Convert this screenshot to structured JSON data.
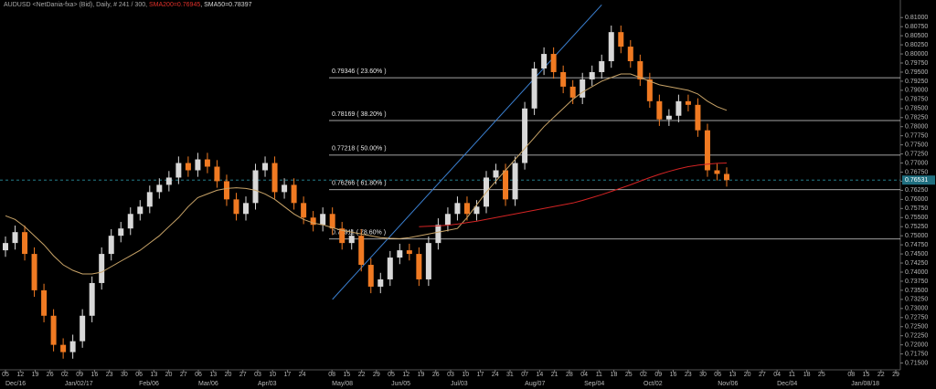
{
  "chart_data": {
    "type": "candlestick",
    "header": [
      {
        "text": "AUDUSD <NetDania-fxa> (Bid), Daily, # 241 / 300, ",
        "color": "#a8a8a8"
      },
      {
        "text": "SMA200=0.76945",
        "color": "#e0302a"
      },
      {
        "text": ", SMA50=0.78397",
        "color": "#d8d8d8"
      }
    ],
    "up_color": "#d8d8d8",
    "down_color": "#f07a22",
    "candles": [
      [
        0.746,
        0.7498,
        0.7442,
        0.748
      ],
      [
        0.748,
        0.7528,
        0.7462,
        0.751
      ],
      [
        0.751,
        0.7528,
        0.7432,
        0.745
      ],
      [
        0.745,
        0.7468,
        0.7332,
        0.735
      ],
      [
        0.735,
        0.7368,
        0.7262,
        0.728
      ],
      [
        0.728,
        0.7298,
        0.7182,
        0.72
      ],
      [
        0.72,
        0.7218,
        0.7162,
        0.718
      ],
      [
        0.718,
        0.7228,
        0.7162,
        0.721
      ],
      [
        0.721,
        0.7298,
        0.7192,
        0.728
      ],
      [
        0.728,
        0.7388,
        0.7262,
        0.737
      ],
      [
        0.737,
        0.7468,
        0.7352,
        0.745
      ],
      [
        0.745,
        0.7518,
        0.7432,
        0.75
      ],
      [
        0.75,
        0.7538,
        0.7482,
        0.752
      ],
      [
        0.752,
        0.7578,
        0.7502,
        0.756
      ],
      [
        0.756,
        0.7598,
        0.7542,
        0.758
      ],
      [
        0.758,
        0.7638,
        0.7562,
        0.762
      ],
      [
        0.762,
        0.7658,
        0.7602,
        0.764
      ],
      [
        0.764,
        0.7678,
        0.7622,
        0.766
      ],
      [
        0.766,
        0.7718,
        0.7642,
        0.77
      ],
      [
        0.77,
        0.7718,
        0.7662,
        0.768
      ],
      [
        0.768,
        0.7728,
        0.7662,
        0.771
      ],
      [
        0.771,
        0.7728,
        0.7672,
        0.769
      ],
      [
        0.769,
        0.7708,
        0.7632,
        0.765
      ],
      [
        0.765,
        0.7668,
        0.7582,
        0.76
      ],
      [
        0.76,
        0.7618,
        0.7542,
        0.756
      ],
      [
        0.756,
        0.7608,
        0.7542,
        0.759
      ],
      [
        0.759,
        0.7698,
        0.7572,
        0.768
      ],
      [
        0.768,
        0.7718,
        0.7662,
        0.77
      ],
      [
        0.77,
        0.7718,
        0.7602,
        0.762
      ],
      [
        0.762,
        0.7658,
        0.7602,
        0.764
      ],
      [
        0.764,
        0.7658,
        0.7572,
        0.759
      ],
      [
        0.759,
        0.7608,
        0.7532,
        0.755
      ],
      [
        0.755,
        0.7568,
        0.7512,
        0.753
      ],
      [
        0.753,
        0.7578,
        0.7512,
        0.756
      ],
      [
        0.756,
        0.7578,
        0.7502,
        0.752
      ],
      [
        0.752,
        0.7538,
        0.7462,
        0.748
      ],
      [
        0.748,
        0.7518,
        0.7462,
        0.75
      ],
      [
        0.75,
        0.7518,
        0.7402,
        0.742
      ],
      [
        0.742,
        0.7438,
        0.7342,
        0.736
      ],
      [
        0.736,
        0.7398,
        0.7342,
        0.738
      ],
      [
        0.738,
        0.7458,
        0.7362,
        0.744
      ],
      [
        0.744,
        0.7478,
        0.7422,
        0.746
      ],
      [
        0.746,
        0.7478,
        0.7432,
        0.745
      ],
      [
        0.745,
        0.7468,
        0.7362,
        0.738
      ],
      [
        0.738,
        0.7498,
        0.7362,
        0.748
      ],
      [
        0.748,
        0.7548,
        0.7462,
        0.753
      ],
      [
        0.753,
        0.7578,
        0.7512,
        0.756
      ],
      [
        0.756,
        0.7608,
        0.7542,
        0.759
      ],
      [
        0.759,
        0.7608,
        0.7542,
        0.756
      ],
      [
        0.756,
        0.7598,
        0.7542,
        0.758
      ],
      [
        0.758,
        0.7678,
        0.7562,
        0.766
      ],
      [
        0.766,
        0.7698,
        0.7642,
        0.768
      ],
      [
        0.768,
        0.7698,
        0.7582,
        0.76
      ],
      [
        0.76,
        0.7718,
        0.7582,
        0.77
      ],
      [
        0.77,
        0.7868,
        0.7682,
        0.785
      ],
      [
        0.785,
        0.7978,
        0.7832,
        0.796
      ],
      [
        0.796,
        0.8018,
        0.7942,
        0.8
      ],
      [
        0.8,
        0.8018,
        0.7932,
        0.795
      ],
      [
        0.795,
        0.7968,
        0.7892,
        0.791
      ],
      [
        0.791,
        0.7928,
        0.7862,
        0.788
      ],
      [
        0.788,
        0.7948,
        0.7862,
        0.793
      ],
      [
        0.793,
        0.7968,
        0.7912,
        0.795
      ],
      [
        0.795,
        0.7998,
        0.7932,
        0.798
      ],
      [
        0.798,
        0.8078,
        0.7962,
        0.806
      ],
      [
        0.806,
        0.8078,
        0.8002,
        0.802
      ],
      [
        0.802,
        0.8038,
        0.7962,
        0.798
      ],
      [
        0.798,
        0.7998,
        0.7912,
        0.793
      ],
      [
        0.793,
        0.7948,
        0.7852,
        0.787
      ],
      [
        0.787,
        0.7888,
        0.7802,
        0.782
      ],
      [
        0.782,
        0.7848,
        0.7802,
        0.783
      ],
      [
        0.783,
        0.7888,
        0.7812,
        0.787
      ],
      [
        0.787,
        0.7888,
        0.7842,
        0.786
      ],
      [
        0.786,
        0.7878,
        0.7772,
        0.779
      ],
      [
        0.779,
        0.7808,
        0.7662,
        0.768
      ],
      [
        0.768,
        0.7698,
        0.7652,
        0.767
      ],
      [
        0.767,
        0.7688,
        0.7635,
        0.7653
      ]
    ],
    "series": [
      {
        "name": "SMA50",
        "color": "#c9a468",
        "values": [
          0.7555,
          0.7545,
          0.7525,
          0.75,
          0.7475,
          0.7445,
          0.742,
          0.7405,
          0.7395,
          0.7395,
          0.74,
          0.7415,
          0.743,
          0.7445,
          0.746,
          0.748,
          0.75,
          0.7525,
          0.755,
          0.758,
          0.7605,
          0.7615,
          0.7625,
          0.763,
          0.7632,
          0.763,
          0.7625,
          0.7615,
          0.76,
          0.758,
          0.756,
          0.7545,
          0.7535,
          0.753,
          0.7522,
          0.7515,
          0.751,
          0.7505,
          0.75,
          0.7495,
          0.7493,
          0.7492,
          0.7495,
          0.75,
          0.7505,
          0.751,
          0.7515,
          0.752,
          0.755,
          0.7585,
          0.762,
          0.765,
          0.768,
          0.771,
          0.774,
          0.777,
          0.78,
          0.7825,
          0.785,
          0.7875,
          0.7895,
          0.791,
          0.7925,
          0.7935,
          0.7945,
          0.7945,
          0.7935,
          0.7925,
          0.7915,
          0.791,
          0.7905,
          0.79,
          0.789,
          0.787,
          0.7855,
          0.7845
        ]
      },
      {
        "name": "SMA200",
        "color": "#d42424",
        "values": [
          null,
          null,
          null,
          null,
          null,
          null,
          null,
          null,
          null,
          null,
          null,
          null,
          null,
          null,
          null,
          null,
          null,
          null,
          null,
          null,
          null,
          null,
          null,
          null,
          null,
          null,
          null,
          null,
          null,
          null,
          null,
          null,
          null,
          null,
          null,
          null,
          null,
          null,
          null,
          null,
          null,
          null,
          null,
          0.7525,
          0.7526,
          0.7527,
          0.7529,
          0.7532,
          0.7536,
          0.754,
          0.7545,
          0.755,
          0.7555,
          0.756,
          0.7565,
          0.757,
          0.7575,
          0.758,
          0.7585,
          0.759,
          0.7597,
          0.7605,
          0.7613,
          0.7622,
          0.7631,
          0.764,
          0.765,
          0.766,
          0.7669,
          0.7677,
          0.7684,
          0.769,
          0.7694,
          0.7697,
          0.7699,
          0.77
        ]
      }
    ],
    "trendline": {
      "color": "#3a7fd0",
      "start": {
        "candle": 34,
        "price": 0.7325
      },
      "end": {
        "candle": 62,
        "price": 0.8135
      }
    },
    "fib_levels": [
      {
        "value": 0.79346,
        "label": "0.79346 ( 23.60% )"
      },
      {
        "value": 0.78169,
        "label": "0.78169 ( 38.20% )"
      },
      {
        "value": 0.77218,
        "label": "0.77218 ( 50.00% )"
      },
      {
        "value": 0.76266,
        "label": "0.76266 ( 61.80% )"
      },
      {
        "value": 0.74911,
        "label": "0.74911 ( 78.60% )"
      }
    ],
    "last_price": 0.76531,
    "ylim": [
      0.71313,
      0.81483
    ],
    "yticks": [
      {
        "value": 0.715,
        "label": "0.71500"
      },
      {
        "value": 0.7175,
        "label": "0.71750"
      },
      {
        "value": 0.72,
        "label": "0.72000"
      },
      {
        "value": 0.7225,
        "label": "0.72250"
      },
      {
        "value": 0.725,
        "label": "0.72500"
      },
      {
        "value": 0.7275,
        "label": "0.72750"
      },
      {
        "value": 0.73,
        "label": "0.73000"
      },
      {
        "value": 0.7325,
        "label": "0.73250"
      },
      {
        "value": 0.735,
        "label": "0.73500"
      },
      {
        "value": 0.7375,
        "label": "0.73750"
      },
      {
        "value": 0.74,
        "label": "0.74000"
      },
      {
        "value": 0.7425,
        "label": "0.74250"
      },
      {
        "value": 0.745,
        "label": "0.74500"
      },
      {
        "value": 0.7475,
        "label": "0.74750"
      },
      {
        "value": 0.75,
        "label": "0.75000"
      },
      {
        "value": 0.7525,
        "label": "0.75250"
      },
      {
        "value": 0.755,
        "label": "0.75500"
      },
      {
        "value": 0.7575,
        "label": "0.75750"
      },
      {
        "value": 0.76,
        "label": "0.76000"
      },
      {
        "value": 0.7625,
        "label": "0.76250"
      },
      {
        "value": 0.765,
        "label": "0.76500"
      },
      {
        "value": 0.7675,
        "label": "0.76750"
      },
      {
        "value": 0.77,
        "label": "0.77000"
      },
      {
        "value": 0.7725,
        "label": "0.77250"
      },
      {
        "value": 0.775,
        "label": "0.77500"
      },
      {
        "value": 0.7775,
        "label": "0.77750"
      },
      {
        "value": 0.78,
        "label": "0.78000"
      },
      {
        "value": 0.7825,
        "label": "0.78250"
      },
      {
        "value": 0.785,
        "label": "0.78500"
      },
      {
        "value": 0.7875,
        "label": "0.78750"
      },
      {
        "value": 0.79,
        "label": "0.79000"
      },
      {
        "value": 0.7925,
        "label": "0.79250"
      },
      {
        "value": 0.795,
        "label": "0.79500"
      },
      {
        "value": 0.7975,
        "label": "0.79750"
      },
      {
        "value": 0.8,
        "label": "0.80000"
      },
      {
        "value": 0.8025,
        "label": "0.80250"
      },
      {
        "value": 0.805,
        "label": "0.80500"
      },
      {
        "value": 0.8075,
        "label": "0.80750"
      },
      {
        "value": 0.81,
        "label": "0.81000"
      }
    ],
    "x_day_labels": [
      "05",
      "12",
      "19",
      "26",
      "02",
      "09",
      "16",
      "23",
      "30",
      "06",
      "13",
      "20",
      "27",
      "06",
      "13",
      "20",
      "27",
      "03",
      "10",
      "17",
      "24",
      null,
      "08",
      "15",
      "22",
      "29",
      "05",
      "12",
      "19",
      "26",
      "03",
      "10",
      "17",
      "24",
      "31",
      "07",
      "14",
      "21",
      "28",
      "04",
      "11",
      "18",
      "25",
      "02",
      "09",
      "16",
      "23",
      "30",
      "06",
      "13",
      "20",
      "27",
      "04",
      "11",
      "18",
      "25",
      null,
      "08",
      "15",
      "22",
      "29"
    ],
    "x_month_labels": [
      "Dec/16",
      null,
      null,
      null,
      "Jan/02/17",
      null,
      null,
      null,
      null,
      "Feb/06",
      null,
      null,
      null,
      "Mar/06",
      null,
      null,
      null,
      "Apr/03",
      null,
      null,
      null,
      null,
      "May/08",
      null,
      null,
      null,
      "Jun/05",
      null,
      null,
      null,
      "Jul/03",
      null,
      null,
      null,
      null,
      "Aug/07",
      null,
      null,
      null,
      "Sep/04",
      null,
      null,
      null,
      "Oct/02",
      null,
      null,
      null,
      null,
      "Nov/06",
      null,
      null,
      null,
      "Dec/04",
      null,
      null,
      null,
      null,
      "Jan/08/18",
      null,
      null,
      null
    ]
  }
}
